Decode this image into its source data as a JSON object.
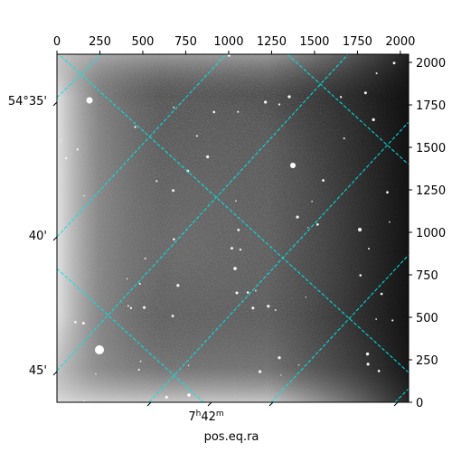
{
  "figure": {
    "pixel_axis_top": {
      "ticks": [
        0,
        250,
        500,
        750,
        1000,
        1250,
        1500,
        1750,
        2000
      ],
      "labels": [
        "0",
        "250",
        "500",
        "750",
        "1000",
        "1250",
        "1500",
        "1750",
        "2000"
      ]
    },
    "pixel_axis_right": {
      "ticks": [
        0,
        250,
        500,
        750,
        1000,
        1250,
        1500,
        1750,
        2000
      ],
      "labels": [
        "0",
        "250",
        "500",
        "750",
        "1000",
        "1250",
        "1500",
        "1750",
        "2000"
      ]
    },
    "pixel_extent": [
      0,
      2048
    ],
    "dec_axis_left": {
      "labels": [
        "54°35'",
        "40'",
        "45'"
      ]
    },
    "ra_axis_bottom": {
      "label_base": "7",
      "label_h": "h",
      "label_mid": "42",
      "label_m": "m"
    },
    "xlabel": "pos.eq.ra",
    "grid_color": "#00e5e5",
    "colormap": "grayscale"
  }
}
